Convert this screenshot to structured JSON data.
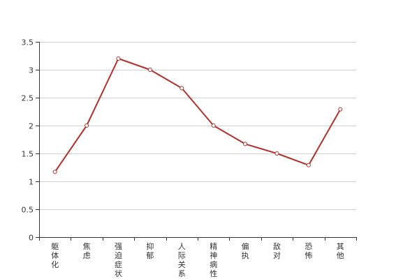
{
  "chart_data": {
    "type": "line",
    "categories": [
      "躯体化",
      "焦虑",
      "强迫症状",
      "抑郁",
      "人际关系敏",
      "精神病性",
      "偏执",
      "敌对",
      "恐怖",
      "其他"
    ],
    "series": [
      {
        "values": [
          1.17,
          2.0,
          3.2,
          3.0,
          2.67,
          2.0,
          1.67,
          1.5,
          1.29,
          2.29
        ]
      }
    ],
    "ylim": [
      0,
      3.5
    ],
    "yticks": [
      0,
      0.5,
      1,
      1.5,
      2,
      2.5,
      3,
      3.5
    ],
    "grid": true,
    "colors": {
      "line": "#b5302b",
      "grid": "#d0d0d0",
      "axis": "#333333"
    }
  }
}
